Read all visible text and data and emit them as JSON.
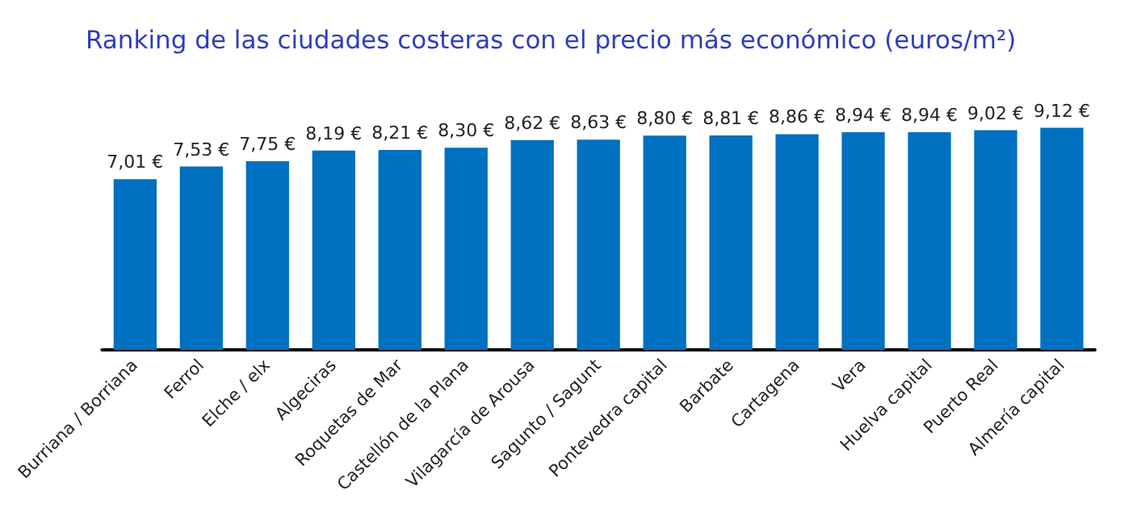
{
  "chart_data": {
    "type": "bar",
    "title": "Ranking de las ciudades costeras con el precio más económico (euros/m²)",
    "categories": [
      "Burriana / Borriana",
      "Ferrol",
      "Elche / elx",
      "Algeciras",
      "Roquetas de Mar",
      "Castellón de la Plana",
      "Vilagarcía de Arousa",
      "Sagunto / Sagunt",
      "Pontevedra capital",
      "Barbate",
      "Cartagena",
      "Vera",
      "Huelva capital",
      "Puerto Real",
      "Almería capital"
    ],
    "values": [
      7.01,
      7.53,
      7.75,
      8.19,
      8.21,
      8.3,
      8.62,
      8.63,
      8.8,
      8.81,
      8.86,
      8.94,
      8.94,
      9.02,
      9.12
    ],
    "value_labels": [
      "7,01 €",
      "7,53 €",
      "7,75 €",
      "8,19 €",
      "8,21 €",
      "8,30 €",
      "8,62 €",
      "8,63 €",
      "8,80 €",
      "8,81 €",
      "8,86 €",
      "8,94 €",
      "8,94 €",
      "9,02 €",
      "9,12 €"
    ],
    "color": "#0070c0"
  }
}
